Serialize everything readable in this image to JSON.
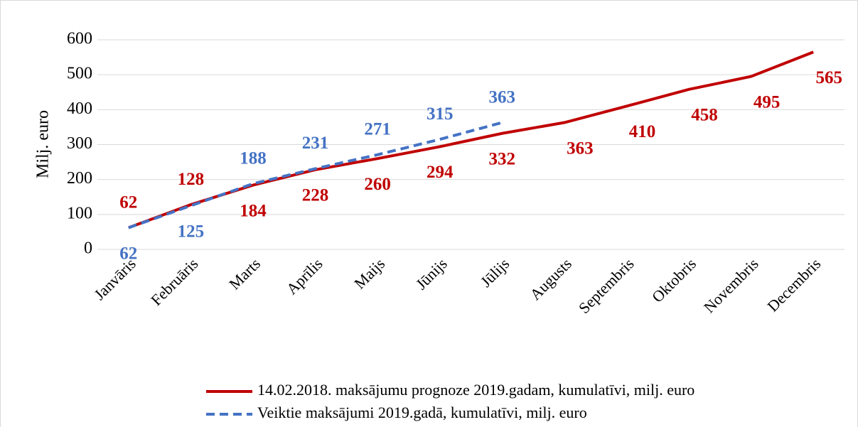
{
  "chart_data": {
    "type": "line",
    "ylabel": "Milj. euro",
    "categories": [
      "Janvāris",
      "Februāris",
      "Marts",
      "Aprīlis",
      "Maijs",
      "Jūnijs",
      "Jūlijs",
      "Augusts",
      "Septembris",
      "Oktobris",
      "Novembris",
      "Decembris"
    ],
    "series": [
      {
        "name": "14.02.2018. maksājumu prognoze 2019.gadam, kumulatīvi, milj. euro",
        "color": "#c00000",
        "dash": false,
        "values": [
          62,
          128,
          184,
          228,
          260,
          294,
          332,
          363,
          410,
          458,
          495,
          565
        ]
      },
      {
        "name": "Veiktie maksājumi 2019.gadā, kumulatīvi, milj. euro",
        "color": "#4472c4",
        "dash": true,
        "values": [
          62,
          125,
          188,
          231,
          271,
          315,
          363,
          null,
          null,
          null,
          null,
          null
        ]
      }
    ],
    "ylim": [
      0,
      600
    ],
    "yticks": [
      0,
      100,
      200,
      300,
      400,
      500,
      600
    ],
    "grid": true,
    "legend": "bottom"
  }
}
